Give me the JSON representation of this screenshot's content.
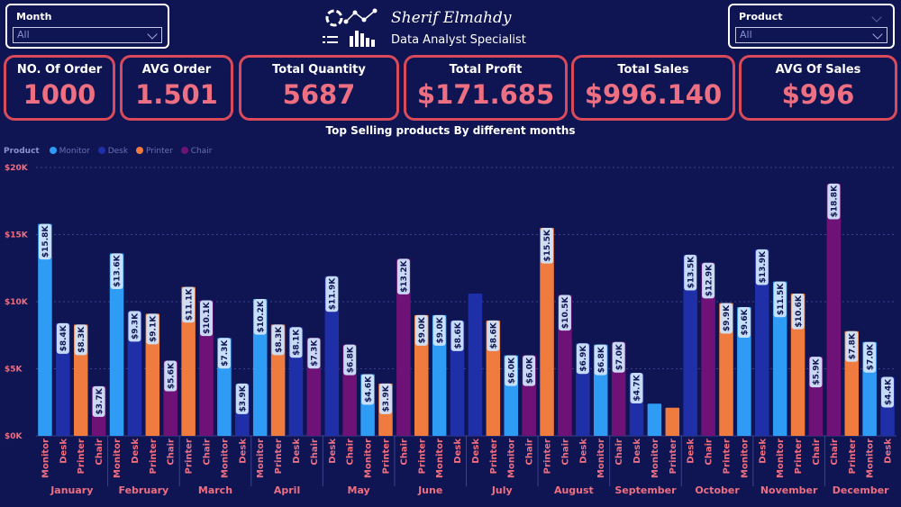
{
  "slicers": {
    "month": {
      "title": "Month",
      "value": "All"
    },
    "product": {
      "title": "Product",
      "value": "All"
    }
  },
  "brand": {
    "name": "Sherif Elmahdy",
    "role": "Data Analyst Specialist"
  },
  "kpis": [
    {
      "label": "NO. Of Order",
      "value": "1000"
    },
    {
      "label": "AVG Order",
      "value": "1.501"
    },
    {
      "label": "Total Quantity",
      "value": "5687"
    },
    {
      "label": "Total Profit",
      "value": "$171.685"
    },
    {
      "label": "Total Sales",
      "value": "$996.140"
    },
    {
      "label": "AVG Of Sales",
      "value": "$996"
    }
  ],
  "colors": {
    "background": "#0f1552",
    "kpi_border": "#d94a5a",
    "kpi_value": "#ee6f82",
    "axis_label": "#ee6f82",
    "Monitor": "#2e9cf4",
    "Desk": "#1f2fa8",
    "Printer": "#f07b3f",
    "Chair": "#6e1278"
  },
  "chart_data": {
    "type": "bar",
    "title": "Top Selling products By different months",
    "legend_title": "Product",
    "legend_position": "top-left",
    "series_names": [
      "Monitor",
      "Desk",
      "Printer",
      "Chair"
    ],
    "ylim": [
      0,
      20000
    ],
    "y_ticks": [
      "$0K",
      "$5K",
      "$10K",
      "$15K",
      "$20K"
    ],
    "grid": true,
    "groups": [
      {
        "month": "January",
        "bars": [
          {
            "product": "Monitor",
            "value": 15800,
            "label": "$15.8K"
          },
          {
            "product": "Desk",
            "value": 8400,
            "label": "$8.4K"
          },
          {
            "product": "Printer",
            "value": 8300,
            "label": "$8.3K"
          },
          {
            "product": "Chair",
            "value": 3700,
            "label": "$3.7K"
          }
        ]
      },
      {
        "month": "February",
        "bars": [
          {
            "product": "Monitor",
            "value": 13600,
            "label": "$13.6K"
          },
          {
            "product": "Desk",
            "value": 9300,
            "label": "$9.3K"
          },
          {
            "product": "Printer",
            "value": 9100,
            "label": "$9.1K"
          },
          {
            "product": "Chair",
            "value": 5600,
            "label": "$5.6K"
          }
        ]
      },
      {
        "month": "March",
        "bars": [
          {
            "product": "Printer",
            "value": 11100,
            "label": "$11.1K"
          },
          {
            "product": "Chair",
            "value": 10100,
            "label": "$10.1K"
          },
          {
            "product": "Monitor",
            "value": 7300,
            "label": "$7.3K"
          },
          {
            "product": "Desk",
            "value": 3900,
            "label": "$3.9K"
          }
        ]
      },
      {
        "month": "April",
        "bars": [
          {
            "product": "Monitor",
            "value": 10200,
            "label": "$10.2K"
          },
          {
            "product": "Printer",
            "value": 8300,
            "label": "$8.3K"
          },
          {
            "product": "Desk",
            "value": 8100,
            "label": "$8.1K"
          },
          {
            "product": "Chair",
            "value": 7300,
            "label": "$7.3K"
          }
        ]
      },
      {
        "month": "May",
        "bars": [
          {
            "product": "Desk",
            "value": 11900,
            "label": "$11.9K"
          },
          {
            "product": "Chair",
            "value": 6800,
            "label": "$6.8K"
          },
          {
            "product": "Monitor",
            "value": 4600,
            "label": "$4.6K"
          },
          {
            "product": "Printer",
            "value": 3900,
            "label": "$3.9K"
          }
        ]
      },
      {
        "month": "June",
        "bars": [
          {
            "product": "Chair",
            "value": 13200,
            "label": "$13.2K"
          },
          {
            "product": "Printer",
            "value": 9000,
            "label": "$9.0K"
          },
          {
            "product": "Monitor",
            "value": 9000,
            "label": "$9.0K"
          },
          {
            "product": "Desk",
            "value": 8600,
            "label": "$8.6K"
          }
        ]
      },
      {
        "month": "July",
        "bars": [
          {
            "product": "Desk",
            "value": 10600,
            "label": ""
          },
          {
            "product": "Printer",
            "value": 8600,
            "label": "$8.6K"
          },
          {
            "product": "Monitor",
            "value": 6000,
            "label": "$6.0K"
          },
          {
            "product": "Chair",
            "value": 6000,
            "label": "$6.0K"
          }
        ]
      },
      {
        "month": "August",
        "bars": [
          {
            "product": "Printer",
            "value": 15500,
            "label": "$15.5K"
          },
          {
            "product": "Chair",
            "value": 10500,
            "label": "$10.5K"
          },
          {
            "product": "Desk",
            "value": 6900,
            "label": "$6.9K"
          },
          {
            "product": "Monitor",
            "value": 6800,
            "label": "$6.8K"
          }
        ]
      },
      {
        "month": "September",
        "bars": [
          {
            "product": "Chair",
            "value": 7000,
            "label": "$7.0K"
          },
          {
            "product": "Desk",
            "value": 4700,
            "label": "$4.7K"
          },
          {
            "product": "Monitor",
            "value": 2400,
            "label": ""
          },
          {
            "product": "Printer",
            "value": 2100,
            "label": ""
          }
        ]
      },
      {
        "month": "October",
        "bars": [
          {
            "product": "Desk",
            "value": 13500,
            "label": "$13.5K"
          },
          {
            "product": "Chair",
            "value": 12900,
            "label": "$12.9K"
          },
          {
            "product": "Printer",
            "value": 9900,
            "label": "$9.9K"
          },
          {
            "product": "Monitor",
            "value": 9600,
            "label": "$9.6K"
          }
        ]
      },
      {
        "month": "November",
        "bars": [
          {
            "product": "Desk",
            "value": 13900,
            "label": "$13.9K"
          },
          {
            "product": "Monitor",
            "value": 11500,
            "label": "$11.5K"
          },
          {
            "product": "Printer",
            "value": 10600,
            "label": "$10.6K"
          },
          {
            "product": "Chair",
            "value": 5900,
            "label": "$5.9K"
          }
        ]
      },
      {
        "month": "December",
        "bars": [
          {
            "product": "Chair",
            "value": 18800,
            "label": "$18.8K"
          },
          {
            "product": "Printer",
            "value": 7800,
            "label": "$7.8K"
          },
          {
            "product": "Monitor",
            "value": 7000,
            "label": "$7.0K"
          },
          {
            "product": "Desk",
            "value": 4400,
            "label": "$4.4K"
          }
        ]
      }
    ]
  }
}
